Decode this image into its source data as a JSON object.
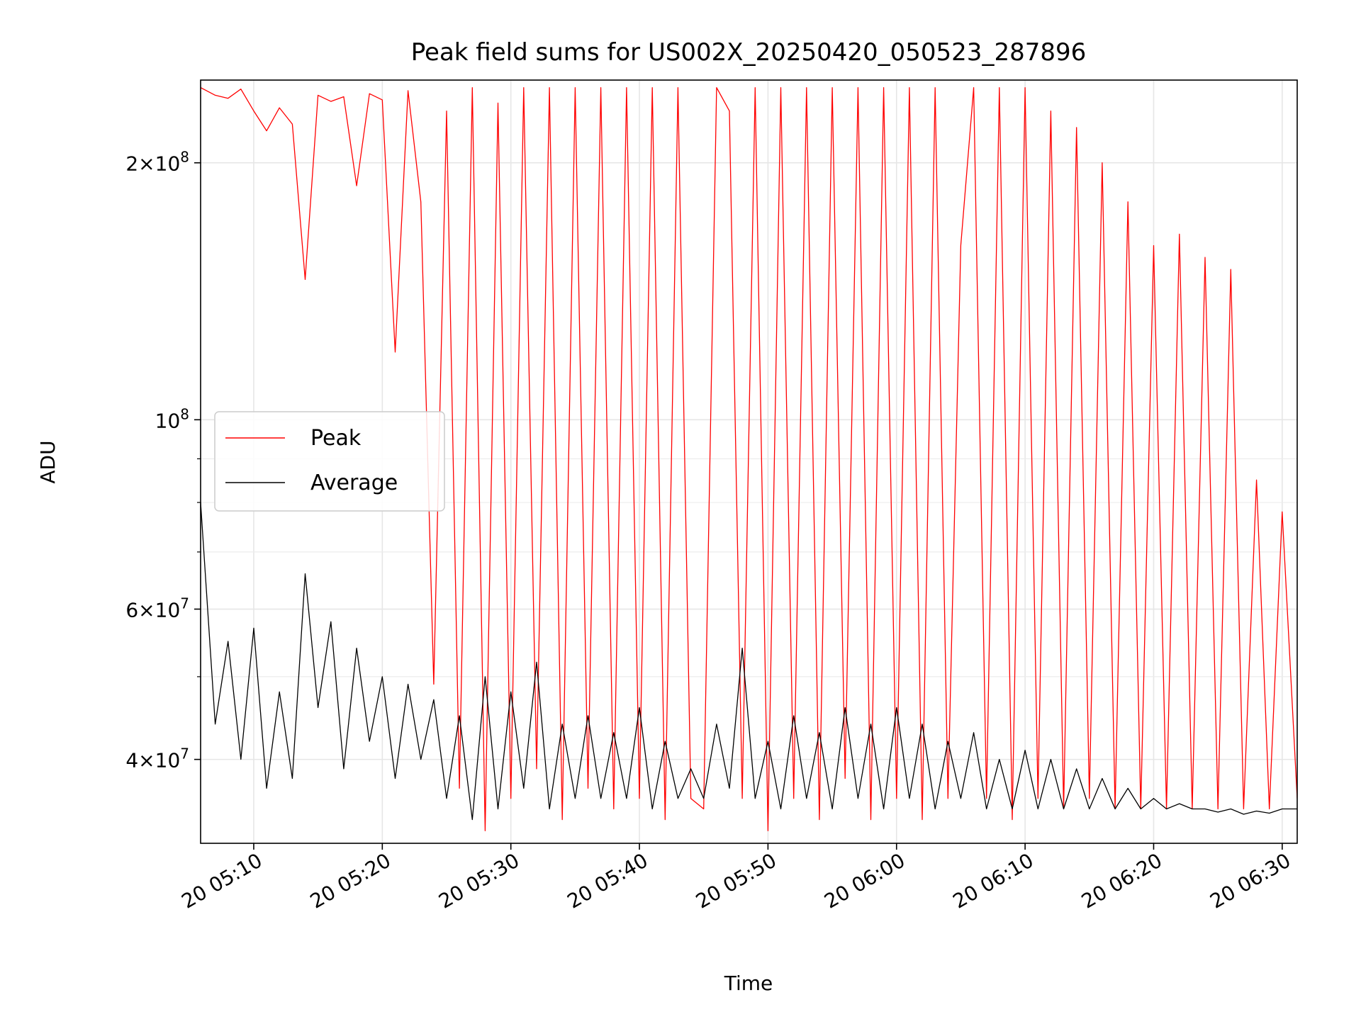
{
  "chart_data": {
    "type": "line",
    "title": "Peak field sums for US002X_20250420_050523_287896",
    "xlabel": "Time",
    "ylabel": "ADU",
    "yscale": "log",
    "xlim": [
      "2025-04-20 05:05:52",
      "2025-04-20 06:31:10"
    ],
    "ylim": [
      31900000,
      250000000
    ],
    "grid": true,
    "legend_position": "center-left",
    "x_ticks": [
      {
        "time": "2025-04-20 05:10:00",
        "label": "20 05:10"
      },
      {
        "time": "2025-04-20 05:20:00",
        "label": "20 05:20"
      },
      {
        "time": "2025-04-20 05:30:00",
        "label": "20 05:30"
      },
      {
        "time": "2025-04-20 05:40:00",
        "label": "20 05:40"
      },
      {
        "time": "2025-04-20 05:50:00",
        "label": "20 05:50"
      },
      {
        "time": "2025-04-20 06:00:00",
        "label": "20 06:00"
      },
      {
        "time": "2025-04-20 06:10:00",
        "label": "20 06:10"
      },
      {
        "time": "2025-04-20 06:20:00",
        "label": "20 06:20"
      },
      {
        "time": "2025-04-20 06:30:00",
        "label": "20 06:30"
      }
    ],
    "y_major_ticks": [
      {
        "value": 40000000,
        "mantissa": "4",
        "times": "×",
        "base": "10",
        "exp": "7"
      },
      {
        "value": 60000000,
        "mantissa": "6",
        "times": "×",
        "base": "10",
        "exp": "7"
      },
      {
        "value": 100000000,
        "mantissa": "",
        "times": "",
        "base": "10",
        "exp": "8"
      },
      {
        "value": 200000000,
        "mantissa": "2",
        "times": "×",
        "base": "10",
        "exp": "8"
      }
    ],
    "y_minor_ticks": [
      50000000,
      70000000,
      80000000,
      90000000
    ],
    "series": [
      {
        "name": "Peak",
        "color": "#ff0000",
        "x": [
          "2025-04-20 05:05:52",
          "2025-04-20 05:07:00",
          "2025-04-20 05:08:00",
          "2025-04-20 05:09:00",
          "2025-04-20 05:10:00",
          "2025-04-20 05:11:00",
          "2025-04-20 05:12:00",
          "2025-04-20 05:13:00",
          "2025-04-20 05:14:00",
          "2025-04-20 05:15:00",
          "2025-04-20 05:16:00",
          "2025-04-20 05:17:00",
          "2025-04-20 05:18:00",
          "2025-04-20 05:19:00",
          "2025-04-20 05:20:00",
          "2025-04-20 05:21:00",
          "2025-04-20 05:22:00",
          "2025-04-20 05:23:00",
          "2025-04-20 05:24:00",
          "2025-04-20 05:25:00",
          "2025-04-20 05:26:00",
          "2025-04-20 05:27:00",
          "2025-04-20 05:28:00",
          "2025-04-20 05:29:00",
          "2025-04-20 05:30:00",
          "2025-04-20 05:31:00",
          "2025-04-20 05:32:00",
          "2025-04-20 05:33:00",
          "2025-04-20 05:34:00",
          "2025-04-20 05:35:00",
          "2025-04-20 05:36:00",
          "2025-04-20 05:37:00",
          "2025-04-20 05:38:00",
          "2025-04-20 05:39:00",
          "2025-04-20 05:40:00",
          "2025-04-20 05:41:00",
          "2025-04-20 05:42:00",
          "2025-04-20 05:43:00",
          "2025-04-20 05:44:00",
          "2025-04-20 05:45:00",
          "2025-04-20 05:46:00",
          "2025-04-20 05:47:00",
          "2025-04-20 05:48:00",
          "2025-04-20 05:49:00",
          "2025-04-20 05:50:00",
          "2025-04-20 05:51:00",
          "2025-04-20 05:52:00",
          "2025-04-20 05:53:00",
          "2025-04-20 05:54:00",
          "2025-04-20 05:55:00",
          "2025-04-20 05:56:00",
          "2025-04-20 05:57:00",
          "2025-04-20 05:58:00",
          "2025-04-20 05:59:00",
          "2025-04-20 06:00:00",
          "2025-04-20 06:01:00",
          "2025-04-20 06:02:00",
          "2025-04-20 06:03:00",
          "2025-04-20 06:04:00",
          "2025-04-20 06:05:00",
          "2025-04-20 06:06:00",
          "2025-04-20 06:07:00",
          "2025-04-20 06:08:00",
          "2025-04-20 06:09:00",
          "2025-04-20 06:10:00",
          "2025-04-20 06:11:00",
          "2025-04-20 06:12:00",
          "2025-04-20 06:13:00",
          "2025-04-20 06:14:00",
          "2025-04-20 06:15:00",
          "2025-04-20 06:16:00",
          "2025-04-20 06:17:00",
          "2025-04-20 06:18:00",
          "2025-04-20 06:19:00",
          "2025-04-20 06:20:00",
          "2025-04-20 06:21:00",
          "2025-04-20 06:22:00",
          "2025-04-20 06:23:00",
          "2025-04-20 06:24:00",
          "2025-04-20 06:25:00",
          "2025-04-20 06:26:00",
          "2025-04-20 06:27:00",
          "2025-04-20 06:28:00",
          "2025-04-20 06:29:00",
          "2025-04-20 06:30:00",
          "2025-04-20 06:31:10"
        ],
        "y": [
          245000000,
          240000000,
          238000000,
          244000000,
          230000000,
          218000000,
          232000000,
          222000000,
          146000000,
          240000000,
          236000000,
          239000000,
          188000000,
          241000000,
          237000000,
          120000000,
          243000000,
          180000000,
          49000000,
          230000000,
          37000000,
          245000000,
          33000000,
          235000000,
          36000000,
          245000000,
          39000000,
          245000000,
          34000000,
          245000000,
          37000000,
          245000000,
          35000000,
          245000000,
          36000000,
          245000000,
          34000000,
          245000000,
          36000000,
          35000000,
          245000000,
          230000000,
          36000000,
          245000000,
          33000000,
          245000000,
          36000000,
          245000000,
          34000000,
          245000000,
          38000000,
          245000000,
          34000000,
          245000000,
          36000000,
          245000000,
          34000000,
          245000000,
          36000000,
          160000000,
          245000000,
          36000000,
          245000000,
          34000000,
          245000000,
          36000000,
          230000000,
          35000000,
          220000000,
          36000000,
          200000000,
          35000000,
          180000000,
          35000000,
          160000000,
          35000000,
          165000000,
          35000000,
          155000000,
          35000000,
          150000000,
          35000000,
          85000000,
          35000000,
          78000000,
          36000000
        ]
      },
      {
        "name": "Average",
        "color": "#000000",
        "x": [
          "2025-04-20 05:05:52",
          "2025-04-20 05:07:00",
          "2025-04-20 05:08:00",
          "2025-04-20 05:09:00",
          "2025-04-20 05:10:00",
          "2025-04-20 05:11:00",
          "2025-04-20 05:12:00",
          "2025-04-20 05:13:00",
          "2025-04-20 05:14:00",
          "2025-04-20 05:15:00",
          "2025-04-20 05:16:00",
          "2025-04-20 05:17:00",
          "2025-04-20 05:18:00",
          "2025-04-20 05:19:00",
          "2025-04-20 05:20:00",
          "2025-04-20 05:21:00",
          "2025-04-20 05:22:00",
          "2025-04-20 05:23:00",
          "2025-04-20 05:24:00",
          "2025-04-20 05:25:00",
          "2025-04-20 05:26:00",
          "2025-04-20 05:27:00",
          "2025-04-20 05:28:00",
          "2025-04-20 05:29:00",
          "2025-04-20 05:30:00",
          "2025-04-20 05:31:00",
          "2025-04-20 05:32:00",
          "2025-04-20 05:33:00",
          "2025-04-20 05:34:00",
          "2025-04-20 05:35:00",
          "2025-04-20 05:36:00",
          "2025-04-20 05:37:00",
          "2025-04-20 05:38:00",
          "2025-04-20 05:39:00",
          "2025-04-20 05:40:00",
          "2025-04-20 05:41:00",
          "2025-04-20 05:42:00",
          "2025-04-20 05:43:00",
          "2025-04-20 05:44:00",
          "2025-04-20 05:45:00",
          "2025-04-20 05:46:00",
          "2025-04-20 05:47:00",
          "2025-04-20 05:48:00",
          "2025-04-20 05:49:00",
          "2025-04-20 05:50:00",
          "2025-04-20 05:51:00",
          "2025-04-20 05:52:00",
          "2025-04-20 05:53:00",
          "2025-04-20 05:54:00",
          "2025-04-20 05:55:00",
          "2025-04-20 05:56:00",
          "2025-04-20 05:57:00",
          "2025-04-20 05:58:00",
          "2025-04-20 05:59:00",
          "2025-04-20 06:00:00",
          "2025-04-20 06:01:00",
          "2025-04-20 06:02:00",
          "2025-04-20 06:03:00",
          "2025-04-20 06:04:00",
          "2025-04-20 06:05:00",
          "2025-04-20 06:06:00",
          "2025-04-20 06:07:00",
          "2025-04-20 06:08:00",
          "2025-04-20 06:09:00",
          "2025-04-20 06:10:00",
          "2025-04-20 06:11:00",
          "2025-04-20 06:12:00",
          "2025-04-20 06:13:00",
          "2025-04-20 06:14:00",
          "2025-04-20 06:15:00",
          "2025-04-20 06:16:00",
          "2025-04-20 06:17:00",
          "2025-04-20 06:18:00",
          "2025-04-20 06:19:00",
          "2025-04-20 06:20:00",
          "2025-04-20 06:21:00",
          "2025-04-20 06:22:00",
          "2025-04-20 06:23:00",
          "2025-04-20 06:24:00",
          "2025-04-20 06:25:00",
          "2025-04-20 06:26:00",
          "2025-04-20 06:27:00",
          "2025-04-20 06:28:00",
          "2025-04-20 06:29:00",
          "2025-04-20 06:30:00",
          "2025-04-20 06:31:10"
        ],
        "y": [
          80000000,
          44000000,
          55000000,
          40000000,
          57000000,
          37000000,
          48000000,
          38000000,
          66000000,
          46000000,
          58000000,
          39000000,
          54000000,
          42000000,
          50000000,
          38000000,
          49000000,
          40000000,
          47000000,
          36000000,
          45000000,
          34000000,
          50000000,
          35000000,
          48000000,
          37000000,
          52000000,
          35000000,
          44000000,
          36000000,
          45000000,
          36000000,
          43000000,
          36000000,
          46000000,
          35000000,
          42000000,
          36000000,
          39000000,
          36000000,
          44000000,
          37000000,
          54000000,
          36000000,
          42000000,
          35000000,
          45000000,
          36000000,
          43000000,
          35000000,
          46000000,
          36000000,
          44000000,
          35000000,
          46000000,
          36000000,
          44000000,
          35000000,
          42000000,
          36000000,
          43000000,
          35000000,
          40000000,
          35000000,
          41000000,
          35000000,
          40000000,
          35000000,
          39000000,
          35000000,
          38000000,
          35000000,
          37000000,
          35000000,
          36000000,
          35000000,
          35500000,
          35000000,
          35000000,
          34700000,
          35000000,
          34500000,
          34800000,
          34600000,
          35000000,
          35000000
        ]
      }
    ]
  }
}
